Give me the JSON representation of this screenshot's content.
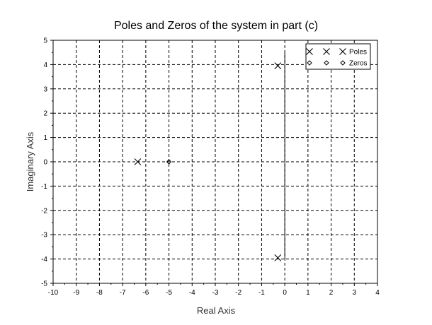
{
  "chart_data": {
    "type": "scatter",
    "title": "Poles and Zeros of the system in part (c)",
    "xlabel": "Real Axis",
    "ylabel": "Imaginary Axis",
    "xlim": [
      -10,
      4
    ],
    "ylim": [
      -5,
      5
    ],
    "x_ticks": [
      -10,
      -9,
      -8,
      -7,
      -6,
      -5,
      -4,
      -3,
      -2,
      -1,
      0,
      1,
      2,
      3,
      4
    ],
    "y_ticks": [
      -5,
      -4,
      -3,
      -2,
      -1,
      0,
      1,
      2,
      3,
      4,
      5
    ],
    "grid": true,
    "legend_position": "top-right",
    "series": [
      {
        "name": "Poles",
        "marker": "x",
        "points": [
          {
            "x": -6.35,
            "y": 0
          },
          {
            "x": -0.3,
            "y": 3.95
          },
          {
            "x": -0.3,
            "y": -3.95
          }
        ]
      },
      {
        "name": "Zeros",
        "marker": "diamond",
        "points": [
          {
            "x": -5,
            "y": 0
          }
        ]
      }
    ],
    "reference_lines": [
      {
        "orientation": "vertical",
        "x": 0,
        "y_range": [
          -4,
          4.5
        ]
      }
    ],
    "colors": {
      "marks": "#000000",
      "grid": "#000000",
      "background": "#ffffff"
    }
  }
}
